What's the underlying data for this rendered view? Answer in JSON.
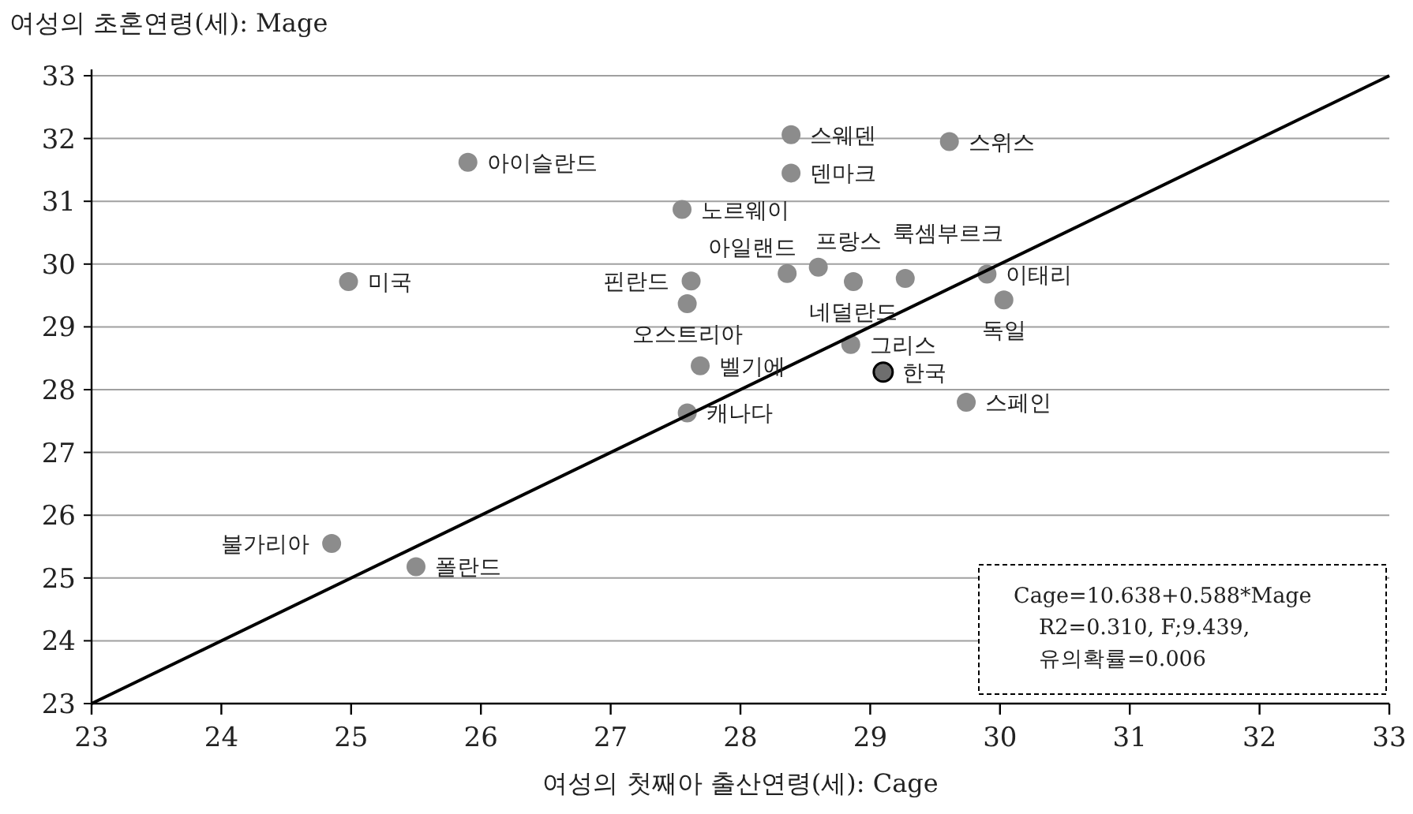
{
  "chart_data": {
    "type": "scatter",
    "xlabel": "여성의 첫째아 출산연령(세): Cage",
    "ylabel": "여성의 초혼연령(세): Mage",
    "xlim": [
      23,
      33
    ],
    "ylim": [
      23,
      33
    ],
    "xticks": [
      23,
      24,
      25,
      26,
      27,
      28,
      29,
      30,
      31,
      32,
      33
    ],
    "yticks": [
      23,
      24,
      25,
      26,
      27,
      28,
      29,
      30,
      31,
      32,
      33
    ],
    "grid": "y",
    "series": [
      {
        "marker": "circle",
        "x": [
          24.98,
          25.9,
          28.39,
          29.61,
          28.39,
          27.55,
          28.36,
          28.6,
          29.27,
          29.9,
          27.62,
          27.59,
          28.87,
          30.03,
          28.85,
          29.1,
          27.69,
          29.74,
          27.59,
          24.85,
          25.5
        ],
        "values": [
          29.72,
          31.62,
          32.06,
          31.95,
          31.45,
          30.87,
          29.85,
          29.95,
          29.77,
          29.84,
          29.73,
          29.37,
          29.72,
          29.43,
          28.72,
          28.28,
          28.38,
          27.8,
          27.63,
          25.55,
          25.18
        ],
        "colors": [
          "#8c8c8c",
          "#8c8c8c",
          "#8c8c8c",
          "#8c8c8c",
          "#8c8c8c",
          "#8c8c8c",
          "#8c8c8c",
          "#8c8c8c",
          "#8c8c8c",
          "#8c8c8c",
          "#8c8c8c",
          "#8c8c8c",
          "#8c8c8c",
          "#8c8c8c",
          "#8c8c8c",
          "#6e6e6e",
          "#8c8c8c",
          "#8c8c8c",
          "#8c8c8c",
          "#8c8c8c",
          "#8c8c8c"
        ]
      },
      {
        "type": "line",
        "x": [
          23,
          33
        ],
        "values": [
          23,
          33
        ],
        "color": "#000000"
      }
    ],
    "annotations": [
      {
        "text": "미국",
        "x": 24.98,
        "y": 29.72
      },
      {
        "text": "아이슬란드",
        "x": 25.9,
        "y": 31.62
      },
      {
        "text": "스웨덴",
        "x": 28.39,
        "y": 32.06
      },
      {
        "text": "스위스",
        "x": 29.61,
        "y": 31.95
      },
      {
        "text": "덴마크",
        "x": 28.39,
        "y": 31.45
      },
      {
        "text": "노르웨이",
        "x": 27.55,
        "y": 30.87
      },
      {
        "text": "아일랜드",
        "x": 28.36,
        "y": 29.85
      },
      {
        "text": "프랑스",
        "x": 28.6,
        "y": 29.95
      },
      {
        "text": "룩셈부르크",
        "x": 29.27,
        "y": 29.77
      },
      {
        "text": "이태리",
        "x": 29.9,
        "y": 29.84
      },
      {
        "text": "핀란드",
        "x": 27.62,
        "y": 29.73
      },
      {
        "text": "오스트리아",
        "x": 27.59,
        "y": 29.37
      },
      {
        "text": "네덜란드",
        "x": 28.87,
        "y": 29.72
      },
      {
        "text": "독일",
        "x": 30.03,
        "y": 29.43
      },
      {
        "text": "그리스",
        "x": 28.85,
        "y": 28.72
      },
      {
        "text": "한국",
        "x": 29.1,
        "y": 28.28
      },
      {
        "text": "벨기에",
        "x": 27.69,
        "y": 28.38
      },
      {
        "text": "스페인",
        "x": 29.74,
        "y": 27.8
      },
      {
        "text": "캐나다",
        "x": 27.59,
        "y": 27.63
      },
      {
        "text": "불가리아",
        "x": 24.85,
        "y": 25.55
      },
      {
        "text": "폴란드",
        "x": 25.5,
        "y": 25.18
      },
      "Cage=10.638+0.588*Mage",
      "R2=0.310, F;9.439,",
      "유의확률=0.006"
    ]
  }
}
